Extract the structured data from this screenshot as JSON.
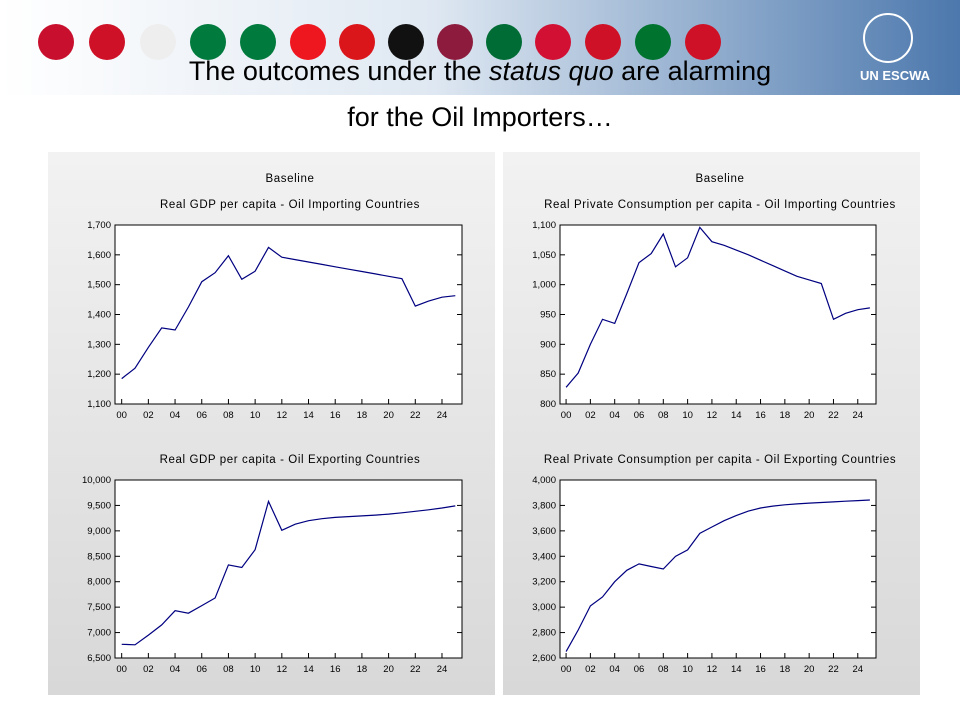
{
  "slide": {
    "title": [
      "The outcomes under  the ",
      "status quo",
      " are alarming",
      "for the Oil Importers…"
    ],
    "logo": "UN ESCWA"
  },
  "chart_data": [
    {
      "type": "line",
      "heading": "Baseline",
      "title": "Real GDP per capita - Oil Importing Countries",
      "color": "#000080",
      "x": [
        2000,
        2001,
        2002,
        2003,
        2004,
        2005,
        2006,
        2007,
        2008,
        2009,
        2010,
        2011,
        2012,
        2013,
        2014,
        2015,
        2016,
        2017,
        2018,
        2019,
        2020,
        2021,
        2022,
        2023,
        2024,
        2025
      ],
      "values": [
        1185,
        1220,
        1290,
        1355,
        1348,
        1425,
        1510,
        1540,
        1597,
        1518,
        1545,
        1625,
        1592,
        1584,
        1576,
        1568,
        1560,
        1552,
        1544,
        1536,
        1528,
        1520,
        1428,
        1445,
        1458,
        1463
      ],
      "xlim": [
        1999.5,
        2025.5
      ],
      "ylim": [
        1100,
        1700
      ],
      "xticks": [
        {
          "value": 2000,
          "label": "00"
        },
        {
          "value": 2002,
          "label": "02"
        },
        {
          "value": 2004,
          "label": "04"
        },
        {
          "value": 2006,
          "label": "06"
        },
        {
          "value": 2008,
          "label": "08"
        },
        {
          "value": 2010,
          "label": "10"
        },
        {
          "value": 2012,
          "label": "12"
        },
        {
          "value": 2014,
          "label": "14"
        },
        {
          "value": 2016,
          "label": "16"
        },
        {
          "value": 2018,
          "label": "18"
        },
        {
          "value": 2020,
          "label": "20"
        },
        {
          "value": 2022,
          "label": "22"
        },
        {
          "value": 2024,
          "label": "24"
        }
      ],
      "yticks": [
        {
          "value": 1100,
          "label": "1,100"
        },
        {
          "value": 1200,
          "label": "1,200"
        },
        {
          "value": 1300,
          "label": "1,300"
        },
        {
          "value": 1400,
          "label": "1,400"
        },
        {
          "value": 1500,
          "label": "1,500"
        },
        {
          "value": 1600,
          "label": "1,600"
        },
        {
          "value": 1700,
          "label": "1,700"
        }
      ]
    },
    {
      "type": "line",
      "heading": "Baseline",
      "title": "Real Private Consumption per capita - Oil Importing Countries",
      "color": "#000080",
      "x": [
        2000,
        2001,
        2002,
        2003,
        2004,
        2005,
        2006,
        2007,
        2008,
        2009,
        2010,
        2011,
        2012,
        2013,
        2014,
        2015,
        2016,
        2017,
        2018,
        2019,
        2020,
        2021,
        2022,
        2023,
        2024,
        2025
      ],
      "values": [
        828,
        852,
        900,
        942,
        935,
        985,
        1037,
        1052,
        1085,
        1030,
        1045,
        1096,
        1072,
        1066,
        1058,
        1050,
        1041,
        1032,
        1023,
        1014,
        1008,
        1002,
        942,
        952,
        958,
        961
      ],
      "xlim": [
        1999.5,
        2025.5
      ],
      "ylim": [
        800,
        1100
      ],
      "xticks": [
        {
          "value": 2000,
          "label": "00"
        },
        {
          "value": 2002,
          "label": "02"
        },
        {
          "value": 2004,
          "label": "04"
        },
        {
          "value": 2006,
          "label": "06"
        },
        {
          "value": 2008,
          "label": "08"
        },
        {
          "value": 2010,
          "label": "10"
        },
        {
          "value": 2012,
          "label": "12"
        },
        {
          "value": 2014,
          "label": "14"
        },
        {
          "value": 2016,
          "label": "16"
        },
        {
          "value": 2018,
          "label": "18"
        },
        {
          "value": 2020,
          "label": "20"
        },
        {
          "value": 2022,
          "label": "22"
        },
        {
          "value": 2024,
          "label": "24"
        }
      ],
      "yticks": [
        800,
        850,
        900,
        950,
        {
          "value": 1000,
          "label": "1,000"
        },
        {
          "value": 1050,
          "label": "1,050"
        },
        {
          "value": 1100,
          "label": "1,100"
        }
      ]
    },
    {
      "type": "line",
      "title": "Real GDP per capita - Oil Exporting Countries",
      "color": "#000080",
      "x": [
        2000,
        2001,
        2002,
        2003,
        2004,
        2005,
        2006,
        2007,
        2008,
        2009,
        2010,
        2011,
        2012,
        2013,
        2014,
        2015,
        2016,
        2017,
        2018,
        2019,
        2020,
        2021,
        2022,
        2023,
        2024,
        2025
      ],
      "values": [
        6770,
        6760,
        6950,
        7150,
        7430,
        7380,
        7530,
        7680,
        8330,
        8280,
        8630,
        9580,
        9010,
        9130,
        9200,
        9240,
        9265,
        9280,
        9295,
        9310,
        9330,
        9355,
        9385,
        9415,
        9450,
        9490
      ],
      "xlim": [
        1999.5,
        2025.5
      ],
      "ylim": [
        6500,
        10000
      ],
      "xticks": [
        {
          "value": 2000,
          "label": "00"
        },
        {
          "value": 2002,
          "label": "02"
        },
        {
          "value": 2004,
          "label": "04"
        },
        {
          "value": 2006,
          "label": "06"
        },
        {
          "value": 2008,
          "label": "08"
        },
        {
          "value": 2010,
          "label": "10"
        },
        {
          "value": 2012,
          "label": "12"
        },
        {
          "value": 2014,
          "label": "14"
        },
        {
          "value": 2016,
          "label": "16"
        },
        {
          "value": 2018,
          "label": "18"
        },
        {
          "value": 2020,
          "label": "20"
        },
        {
          "value": 2022,
          "label": "22"
        },
        {
          "value": 2024,
          "label": "24"
        }
      ],
      "yticks": [
        {
          "value": 6500,
          "label": "6,500"
        },
        {
          "value": 7000,
          "label": "7,000"
        },
        {
          "value": 7500,
          "label": "7,500"
        },
        {
          "value": 8000,
          "label": "8,000"
        },
        {
          "value": 8500,
          "label": "8,500"
        },
        {
          "value": 9000,
          "label": "9,000"
        },
        {
          "value": 9500,
          "label": "9,500"
        },
        {
          "value": 10000,
          "label": "10,000"
        }
      ]
    },
    {
      "type": "line",
      "title": "Real Private Consumption per capita - Oil Exporting Countries",
      "color": "#000080",
      "x": [
        2000,
        2001,
        2002,
        2003,
        2004,
        2005,
        2006,
        2007,
        2008,
        2009,
        2010,
        2011,
        2012,
        2013,
        2014,
        2015,
        2016,
        2017,
        2018,
        2019,
        2020,
        2021,
        2022,
        2023,
        2024,
        2025
      ],
      "values": [
        2650,
        2820,
        3010,
        3080,
        3200,
        3290,
        3340,
        3320,
        3300,
        3400,
        3450,
        3580,
        3630,
        3680,
        3720,
        3755,
        3780,
        3795,
        3805,
        3812,
        3818,
        3823,
        3828,
        3833,
        3838,
        3843
      ],
      "xlim": [
        1999.5,
        2025.5
      ],
      "ylim": [
        2600,
        4000
      ],
      "xticks": [
        {
          "value": 2000,
          "label": "00"
        },
        {
          "value": 2002,
          "label": "02"
        },
        {
          "value": 2004,
          "label": "04"
        },
        {
          "value": 2006,
          "label": "06"
        },
        {
          "value": 2008,
          "label": "08"
        },
        {
          "value": 2010,
          "label": "10"
        },
        {
          "value": 2012,
          "label": "12"
        },
        {
          "value": 2014,
          "label": "14"
        },
        {
          "value": 2016,
          "label": "16"
        },
        {
          "value": 2018,
          "label": "18"
        },
        {
          "value": 2020,
          "label": "20"
        },
        {
          "value": 2022,
          "label": "22"
        },
        {
          "value": 2024,
          "label": "24"
        }
      ],
      "yticks": [
        {
          "value": 2600,
          "label": "2,600"
        },
        {
          "value": 2800,
          "label": "2,800"
        },
        {
          "value": 3000,
          "label": "3,000"
        },
        {
          "value": 3200,
          "label": "3,200"
        },
        {
          "value": 3400,
          "label": "3,400"
        },
        {
          "value": 3600,
          "label": "3,600"
        },
        {
          "value": 3800,
          "label": "3,800"
        },
        {
          "value": 4000,
          "label": "4,000"
        }
      ]
    }
  ]
}
